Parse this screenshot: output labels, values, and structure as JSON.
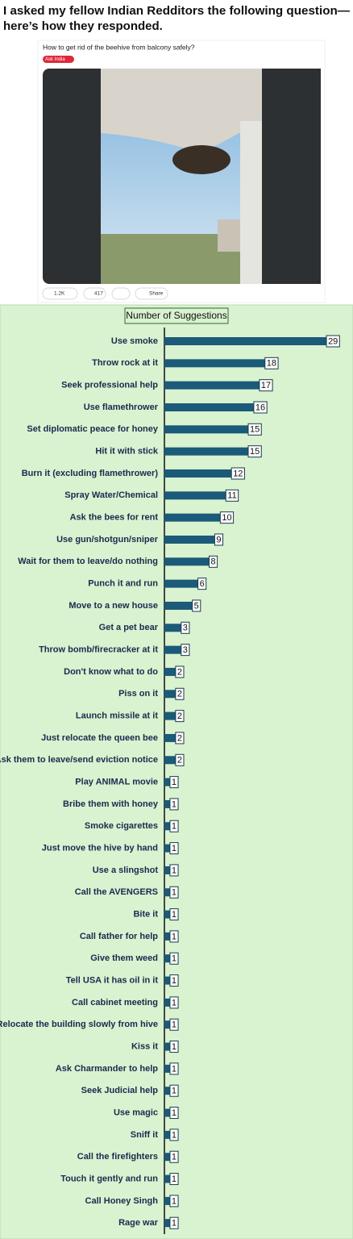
{
  "header": {
    "title_lines": [
      "I asked my fellow Indian Redditors the following question—",
      "here’s how they responded."
    ]
  },
  "post": {
    "title": "How to get rid of the beehive from balcony safely?",
    "flair": "Ask India",
    "votes": "1.2K",
    "comments": "417",
    "share": "Share"
  },
  "chart_data": {
    "type": "hbar",
    "title": "Number of Suggestions",
    "color": "#1b5a78",
    "categories": [
      "Use smoke",
      "Throw rock at it",
      "Seek professional help",
      "Use flamethrower",
      "Set diplomatic peace for honey",
      "Hit it with stick",
      "Burn it (excluding flamethrower)",
      "Spray Water/Chemical",
      "Ask the bees for rent",
      "Use gun/shotgun/sniper",
      "Wait for them to leave/do nothing",
      "Punch it and run",
      "Move to a new house",
      "Get a pet bear",
      "Throw bomb/firecracker at it",
      "Don't know what to do",
      "Piss on it",
      "Launch missile at it",
      "Just relocate the queen bee",
      "Ask them to leave/send eviction notice",
      "Play ANIMAL movie",
      "Bribe them with honey",
      "Smoke cigarettes",
      "Just move the hive by hand",
      "Use a slingshot",
      "Call the AVENGERS",
      "Bite it",
      "Call father for help",
      "Give them weed",
      "Tell USA it has oil in it",
      "Call cabinet meeting",
      "Relocate the building slowly from hive",
      "Kiss it",
      "Ask Charmander to help",
      "Seek Judicial help",
      "Use magic",
      "Sniff it",
      "Call the firefighters",
      "Touch it gently and run",
      "Call Honey Singh",
      "Rage war"
    ],
    "values": [
      29,
      18,
      17,
      16,
      15,
      15,
      12,
      11,
      10,
      9,
      8,
      6,
      5,
      3,
      3,
      2,
      2,
      2,
      2,
      2,
      1,
      1,
      1,
      1,
      1,
      1,
      1,
      1,
      1,
      1,
      1,
      1,
      1,
      1,
      1,
      1,
      1,
      1,
      1,
      1,
      1
    ],
    "xlim": [
      0,
      30
    ]
  }
}
